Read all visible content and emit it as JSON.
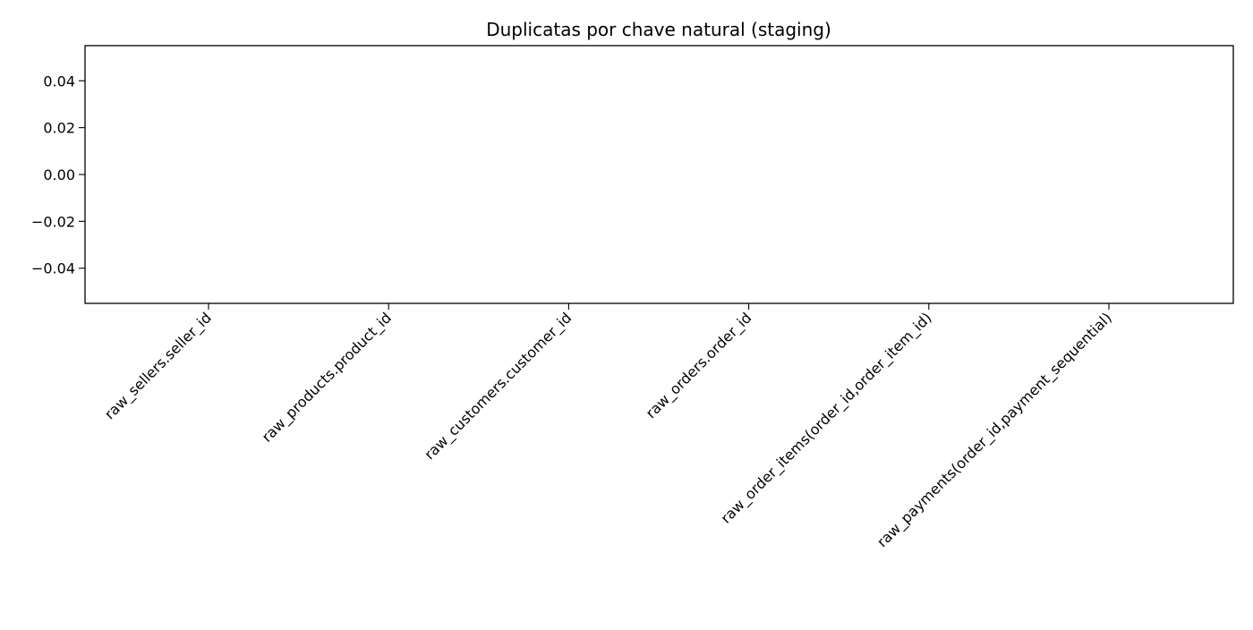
{
  "chart_data": {
    "type": "bar",
    "title": "Duplicatas por chave natural (staging)",
    "xlabel": "",
    "ylabel": "",
    "categories": [
      "raw_sellers.seller_id",
      "raw_products.product_id",
      "raw_customers.customer_id",
      "raw_orders.order_id",
      "raw_order_items(order_id,order_item_id)",
      "raw_payments(order_id,payment_sequential)"
    ],
    "values": [
      0,
      0,
      0,
      0,
      0,
      0
    ],
    "ylim": [
      -0.055,
      0.055
    ],
    "yticks": [
      0.04,
      0.02,
      0.0,
      -0.02,
      -0.04
    ],
    "ytick_labels": [
      "0.04",
      "0.02",
      "0.00",
      "−0.02",
      "−0.04"
    ],
    "grid": false,
    "legend": "none",
    "bar_color": "#1f77b4"
  }
}
